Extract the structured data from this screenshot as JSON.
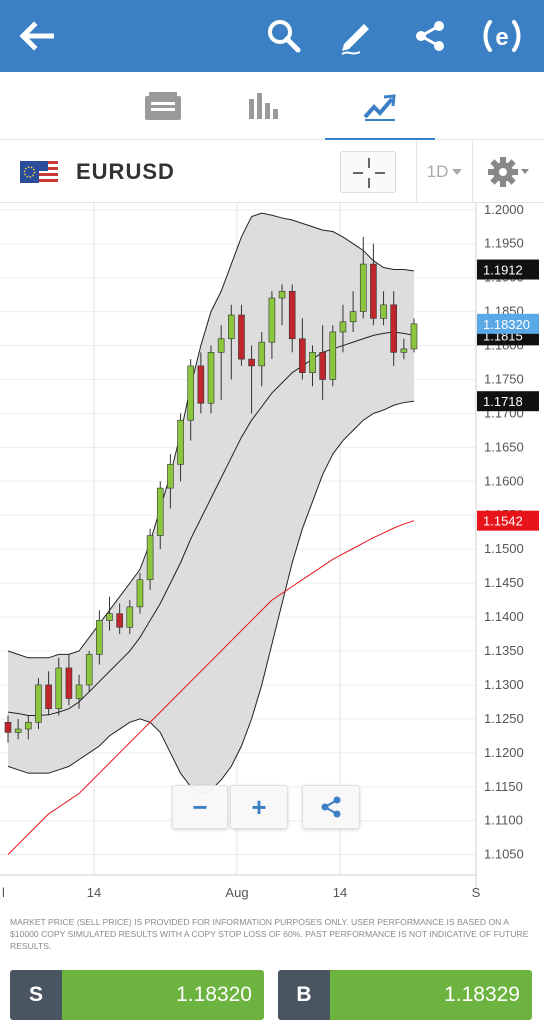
{
  "app": {
    "icons": [
      "back-arrow-icon",
      "search-icon",
      "pencil-icon",
      "share-icon",
      "etoro-logo-icon"
    ]
  },
  "tabs": [
    {
      "icon": "feed-icon",
      "active": false
    },
    {
      "icon": "stats-icon",
      "active": false
    },
    {
      "icon": "chart-icon",
      "active": true
    }
  ],
  "instrument": {
    "symbol": "EURUSD",
    "flag_icon": "eu-us-flag-icon",
    "period": "1D",
    "crosshair_icon": "crosshair-icon",
    "settings_icon": "gear-icon"
  },
  "chart_data": {
    "type": "candlestick",
    "ylim": [
      1.102,
      1.201
    ],
    "y_ticks": [
      "1.2000",
      "1.1950",
      "1.1900",
      "1.1850",
      "1.1800",
      "1.1750",
      "1.1700",
      "1.1650",
      "1.1600",
      "1.1550",
      "1.1500",
      "1.1450",
      "1.1400",
      "1.1350",
      "1.1300",
      "1.1250",
      "1.1200",
      "1.1150",
      "1.1100",
      "1.1050"
    ],
    "x_labels": [
      "l",
      "14",
      "Aug",
      "14",
      "S"
    ],
    "price_labels": [
      {
        "text": "1.1912",
        "value": 1.1912,
        "color": "#111111"
      },
      {
        "text": "1.1815",
        "value": 1.1815,
        "color": "#111111"
      },
      {
        "text": "1.18320",
        "value": 1.1832,
        "color": "#5aa9e6"
      },
      {
        "text": "1.1718",
        "value": 1.1718,
        "color": "#111111"
      },
      {
        "text": "1.1542",
        "value": 1.1542,
        "color": "#e8141c"
      }
    ],
    "candles": [
      [
        1.1245,
        1.1255,
        1.1215,
        1.123
      ],
      [
        1.123,
        1.125,
        1.122,
        1.1235
      ],
      [
        1.1235,
        1.1255,
        1.122,
        1.1245
      ],
      [
        1.1245,
        1.131,
        1.1235,
        1.13
      ],
      [
        1.13,
        1.132,
        1.1255,
        1.1265
      ],
      [
        1.1265,
        1.134,
        1.1255,
        1.1325
      ],
      [
        1.1325,
        1.1345,
        1.127,
        1.128
      ],
      [
        1.128,
        1.1315,
        1.1265,
        1.13
      ],
      [
        1.13,
        1.135,
        1.129,
        1.1345
      ],
      [
        1.1345,
        1.141,
        1.133,
        1.1395
      ],
      [
        1.1395,
        1.143,
        1.138,
        1.1405
      ],
      [
        1.1405,
        1.142,
        1.1375,
        1.1385
      ],
      [
        1.1385,
        1.1425,
        1.1375,
        1.1415
      ],
      [
        1.1415,
        1.1465,
        1.1405,
        1.1455
      ],
      [
        1.1455,
        1.153,
        1.144,
        1.152
      ],
      [
        1.152,
        1.16,
        1.15,
        1.159
      ],
      [
        1.159,
        1.164,
        1.156,
        1.1625
      ],
      [
        1.1625,
        1.17,
        1.16,
        1.169
      ],
      [
        1.169,
        1.178,
        1.166,
        1.177
      ],
      [
        1.177,
        1.179,
        1.17,
        1.1715
      ],
      [
        1.1715,
        1.18,
        1.17,
        1.179
      ],
      [
        1.179,
        1.183,
        1.172,
        1.181
      ],
      [
        1.181,
        1.186,
        1.175,
        1.1845
      ],
      [
        1.1845,
        1.186,
        1.177,
        1.178
      ],
      [
        1.178,
        1.18,
        1.17,
        1.177
      ],
      [
        1.177,
        1.182,
        1.174,
        1.1805
      ],
      [
        1.1805,
        1.188,
        1.178,
        1.187
      ],
      [
        1.187,
        1.189,
        1.183,
        1.188
      ],
      [
        1.188,
        1.189,
        1.179,
        1.181
      ],
      [
        1.181,
        1.184,
        1.175,
        1.176
      ],
      [
        1.176,
        1.18,
        1.174,
        1.179
      ],
      [
        1.179,
        1.183,
        1.172,
        1.175
      ],
      [
        1.175,
        1.183,
        1.174,
        1.182
      ],
      [
        1.182,
        1.186,
        1.179,
        1.1835
      ],
      [
        1.1835,
        1.188,
        1.182,
        1.185
      ],
      [
        1.185,
        1.196,
        1.184,
        1.192
      ],
      [
        1.192,
        1.195,
        1.183,
        1.184
      ],
      [
        1.184,
        1.188,
        1.183,
        1.186
      ],
      [
        1.186,
        1.188,
        1.177,
        1.179
      ],
      [
        1.179,
        1.181,
        1.178,
        1.1795
      ],
      [
        1.1795,
        1.184,
        1.179,
        1.1832
      ]
    ],
    "bb_upper": [
      1.135,
      1.1345,
      1.134,
      1.134,
      1.134,
      1.1345,
      1.1345,
      1.135,
      1.137,
      1.139,
      1.141,
      1.143,
      1.145,
      1.147,
      1.151,
      1.156,
      1.161,
      1.167,
      1.174,
      1.18,
      1.185,
      1.188,
      1.192,
      1.196,
      1.199,
      1.1995,
      1.1992,
      1.1988,
      1.1985,
      1.198,
      1.1975,
      1.197,
      1.1968,
      1.196,
      1.195,
      1.194,
      1.1925,
      1.1915,
      1.1912,
      1.1912,
      1.191
    ],
    "bb_middle": [
      1.126,
      1.1258,
      1.1255,
      1.1255,
      1.1256,
      1.126,
      1.1265,
      1.1275,
      1.129,
      1.1305,
      1.132,
      1.1335,
      1.135,
      1.137,
      1.1395,
      1.142,
      1.145,
      1.148,
      1.1515,
      1.1545,
      1.1575,
      1.1605,
      1.1635,
      1.1665,
      1.169,
      1.171,
      1.173,
      1.1745,
      1.176,
      1.177,
      1.178,
      1.179,
      1.1795,
      1.18,
      1.1805,
      1.181,
      1.1815,
      1.1818,
      1.182,
      1.1818,
      1.1815
    ],
    "bb_lower": [
      1.118,
      1.1175,
      1.117,
      1.117,
      1.117,
      1.1175,
      1.118,
      1.119,
      1.12,
      1.121,
      1.1225,
      1.1235,
      1.1245,
      1.125,
      1.1245,
      1.123,
      1.12,
      1.117,
      1.115,
      1.114,
      1.1145,
      1.116,
      1.118,
      1.121,
      1.125,
      1.13,
      1.136,
      1.142,
      1.148,
      1.153,
      1.157,
      1.161,
      1.164,
      1.166,
      1.1675,
      1.169,
      1.17,
      1.1705,
      1.1712,
      1.1716,
      1.1718
    ],
    "ma": [
      1.105,
      1.1065,
      1.108,
      1.1095,
      1.111,
      1.112,
      1.113,
      1.114,
      1.1155,
      1.117,
      1.1185,
      1.12,
      1.1215,
      1.123,
      1.1245,
      1.126,
      1.1275,
      1.129,
      1.1305,
      1.132,
      1.1335,
      1.135,
      1.1365,
      1.138,
      1.1395,
      1.141,
      1.1425,
      1.1435,
      1.1445,
      1.1455,
      1.1465,
      1.1475,
      1.1485,
      1.1493,
      1.1501,
      1.1509,
      1.1517,
      1.1524,
      1.1531,
      1.1537,
      1.1542
    ],
    "grid": true,
    "colors": {
      "up": "#8cc63f",
      "down": "#c0272d",
      "band_fill": "#d9d9d9",
      "ma": "#e8141c"
    }
  },
  "zoom": {
    "minus": "−",
    "plus": "+",
    "share_icon": "share-icon"
  },
  "disclaimer": "MARKET PRICE (SELL PRICE) IS PROVIDED FOR INFORMATION PURPOSES ONLY. USER PERFORMANCE IS BASED ON A $10000 COPY SIMULATED RESULTS WITH A COPY STOP LOSS OF 60%. PAST PERFORMANCE IS NOT INDICATIVE OF FUTURE RESULTS.",
  "trade": {
    "sell_label": "S",
    "sell_price": "1.18320",
    "buy_label": "B",
    "buy_price": "1.18329"
  }
}
